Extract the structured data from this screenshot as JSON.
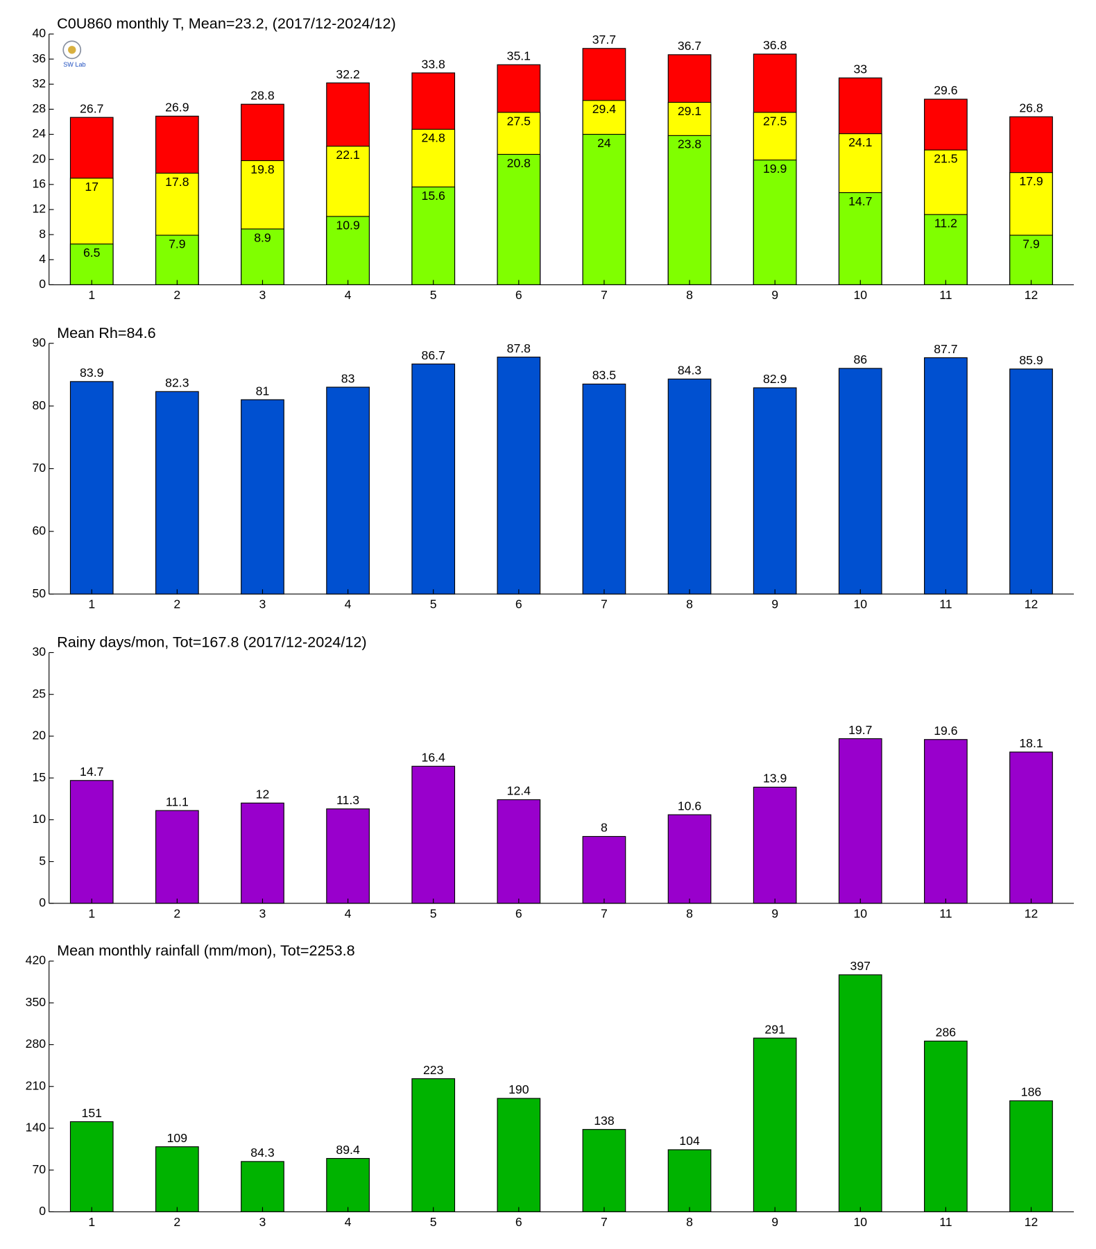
{
  "chart_data": [
    {
      "type": "bar",
      "title": "C0U860 monthly T, Mean=23.2, (2017/12-2024/12)",
      "categories": [
        "1",
        "2",
        "3",
        "4",
        "5",
        "6",
        "7",
        "8",
        "9",
        "10",
        "11",
        "12"
      ],
      "series": [
        {
          "color": "#80ff00",
          "values": [
            6.5,
            7.9,
            8.9,
            10.9,
            15.6,
            20.8,
            24,
            23.8,
            19.9,
            14.7,
            11.2,
            7.9
          ]
        },
        {
          "color": "#ffff00",
          "values": [
            17,
            17.8,
            19.8,
            22.1,
            24.8,
            27.5,
            29.4,
            29.1,
            27.5,
            24.1,
            21.5,
            17.9
          ]
        },
        {
          "color": "#ff0000",
          "values": [
            26.7,
            26.9,
            28.8,
            32.2,
            33.8,
            35.1,
            37.7,
            36.7,
            36.8,
            33,
            29.6,
            26.8
          ]
        }
      ],
      "ylim": [
        0,
        40
      ],
      "yticks": [
        0,
        4,
        8,
        12,
        16,
        20,
        24,
        28,
        32,
        36,
        40
      ]
    },
    {
      "type": "bar",
      "title": "Mean Rh=84.6",
      "categories": [
        "1",
        "2",
        "3",
        "4",
        "5",
        "6",
        "7",
        "8",
        "9",
        "10",
        "11",
        "12"
      ],
      "series": [
        {
          "color": "#0050d0",
          "values": [
            83.9,
            82.3,
            81,
            83,
            86.7,
            87.8,
            83.5,
            84.3,
            82.9,
            86,
            87.7,
            85.9
          ]
        }
      ],
      "ylim": [
        50,
        90
      ],
      "yticks": [
        50,
        60,
        70,
        80,
        90
      ]
    },
    {
      "type": "bar",
      "title": "Rainy days/mon, Tot=167.8 (2017/12-2024/12)",
      "categories": [
        "1",
        "2",
        "3",
        "4",
        "5",
        "6",
        "7",
        "8",
        "9",
        "10",
        "11",
        "12"
      ],
      "series": [
        {
          "color": "#9900cc",
          "values": [
            14.7,
            11.1,
            12,
            11.3,
            16.4,
            12.4,
            8,
            10.6,
            13.9,
            19.7,
            19.6,
            18.1
          ]
        }
      ],
      "ylim": [
        0,
        30
      ],
      "yticks": [
        0,
        5,
        10,
        15,
        20,
        25,
        30
      ]
    },
    {
      "type": "bar",
      "title": "Mean monthly rainfall (mm/mon), Tot=2253.8",
      "categories": [
        "1",
        "2",
        "3",
        "4",
        "5",
        "6",
        "7",
        "8",
        "9",
        "10",
        "11",
        "12"
      ],
      "series": [
        {
          "color": "#00b300",
          "values": [
            151,
            109,
            84.3,
            89.4,
            223,
            190,
            138,
            104,
            291,
            397,
            286,
            186
          ]
        }
      ],
      "ylim": [
        0,
        420
      ],
      "yticks": [
        0,
        70,
        140,
        210,
        280,
        350,
        420
      ]
    }
  ]
}
